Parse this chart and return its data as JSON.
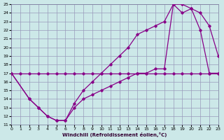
{
  "bg_color": "#cce8e8",
  "grid_color": "#9999bb",
  "line_color": "#880088",
  "xlim": [
    0,
    23
  ],
  "ylim": [
    11,
    25
  ],
  "xticks": [
    0,
    1,
    2,
    3,
    4,
    5,
    6,
    7,
    8,
    9,
    10,
    11,
    12,
    13,
    14,
    15,
    16,
    17,
    18,
    19,
    20,
    21,
    22,
    23
  ],
  "yticks": [
    11,
    12,
    13,
    14,
    15,
    16,
    17,
    18,
    19,
    20,
    21,
    22,
    23,
    24,
    25
  ],
  "xlabel": "Windchill (Refroidissement éolien,°C)",
  "curve1_x": [
    0,
    1,
    2,
    3,
    4,
    5,
    6,
    7,
    8,
    9,
    10,
    11,
    12,
    13,
    14,
    15,
    16,
    17,
    18,
    19,
    20,
    21,
    22,
    23
  ],
  "curve1_y": [
    17,
    17,
    17,
    17,
    17,
    17,
    17,
    17,
    17,
    17,
    17,
    17,
    17,
    17,
    17,
    17,
    17,
    17,
    17,
    17,
    17,
    17,
    17,
    17
  ],
  "curve2_x": [
    0,
    2,
    3,
    4,
    5,
    6,
    7,
    8,
    9,
    10,
    11,
    12,
    13,
    14,
    15,
    16,
    17,
    18,
    19,
    20,
    21,
    22,
    23
  ],
  "curve2_y": [
    17,
    14,
    13,
    12,
    11.5,
    11.5,
    13.5,
    15,
    16,
    17,
    18,
    19,
    20,
    21.5,
    22,
    22.5,
    23,
    25,
    25,
    24.5,
    24,
    22.5,
    19
  ],
  "curve3_x": [
    0,
    2,
    3,
    4,
    5,
    6,
    7,
    8,
    9,
    10,
    11,
    12,
    13,
    14,
    15,
    16,
    17,
    18,
    19,
    20,
    21,
    22,
    23
  ],
  "curve3_y": [
    17,
    14,
    13,
    12,
    11.5,
    11.5,
    13,
    14,
    14.5,
    15,
    15.5,
    16,
    16.5,
    17,
    17,
    17.5,
    17.5,
    25,
    24,
    24.5,
    22,
    17,
    17
  ]
}
